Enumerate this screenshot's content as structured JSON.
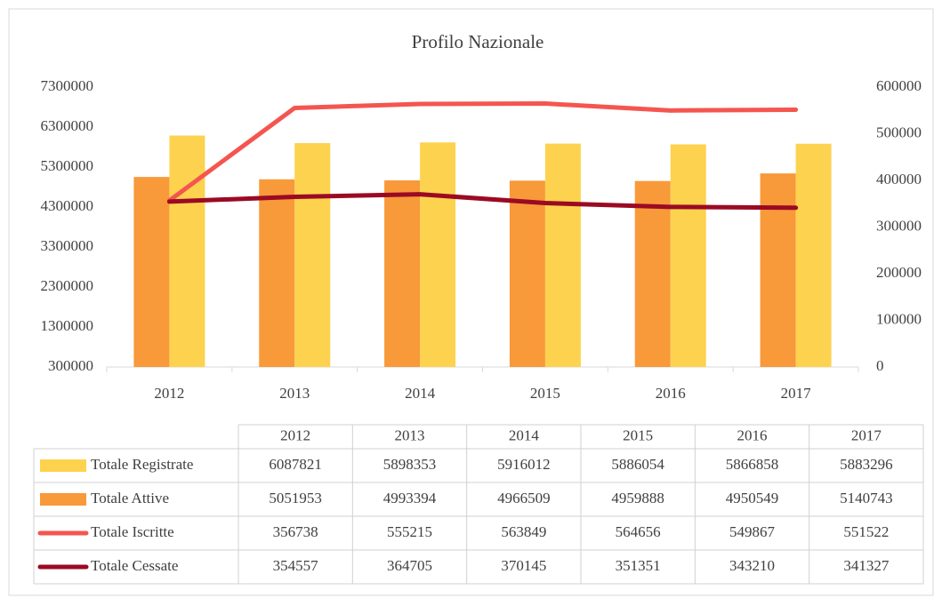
{
  "chart_data": {
    "type": "bar",
    "title": "Profilo Nazionale",
    "categories": [
      "2012",
      "2013",
      "2014",
      "2015",
      "2016",
      "2017"
    ],
    "series": [
      {
        "name": "Totale Registrate",
        "type": "bar",
        "color": "#fdd24f",
        "values": [
          6087821,
          5898353,
          5916012,
          5886054,
          5866858,
          5883296
        ]
      },
      {
        "name": "Totale Attive",
        "type": "bar",
        "color": "#f8993a",
        "values": [
          5051953,
          4993394,
          4966509,
          4959888,
          4950549,
          5140743
        ]
      },
      {
        "name": "Totale Iscritte",
        "type": "line",
        "axis": "y2",
        "color": "#f4564f",
        "values": [
          356738,
          555215,
          563849,
          564656,
          549867,
          551522
        ]
      },
      {
        "name": "Totale Cessate",
        "type": "line",
        "axis": "y2",
        "color": "#9b0a23",
        "values": [
          354557,
          364705,
          370145,
          351351,
          343210,
          341327
        ]
      }
    ],
    "ylim": [
      300000,
      7300000
    ],
    "yticks": [
      300000,
      1300000,
      2300000,
      3300000,
      4300000,
      5300000,
      6300000,
      7300000
    ],
    "y2lim": [
      0,
      600000
    ],
    "y2ticks": [
      0,
      100000,
      200000,
      300000,
      400000,
      500000,
      600000
    ],
    "grid": false
  }
}
